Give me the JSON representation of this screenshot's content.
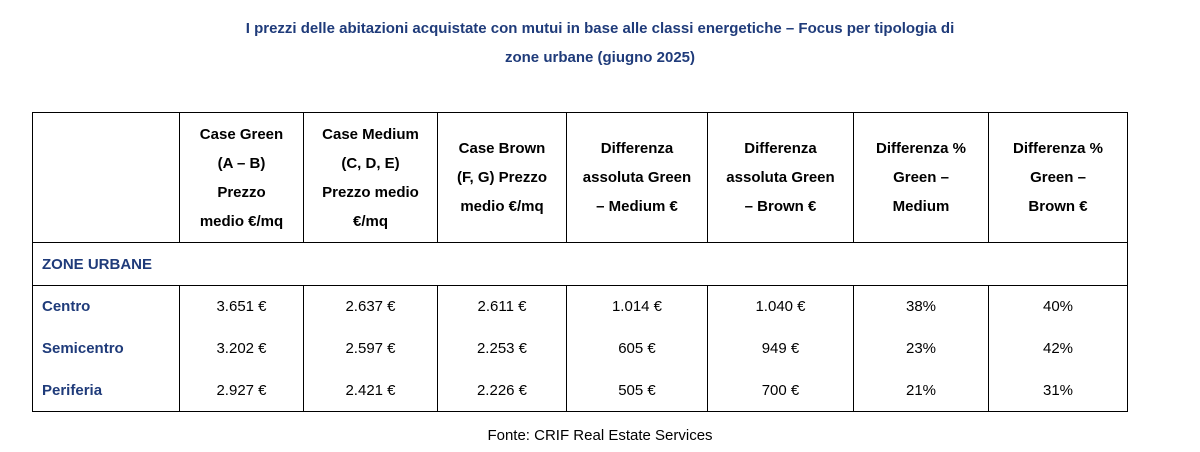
{
  "title": {
    "line1": "I prezzi delle abitazioni acquistate con mutui in base alle classi energetiche – Focus per tipologia di",
    "line2": "zone urbane (giugno 2025)"
  },
  "table": {
    "headers": [
      {
        "lines": []
      },
      {
        "lines": [
          "Case Green",
          "(A – B)",
          "Prezzo",
          "medio €/mq"
        ]
      },
      {
        "lines": [
          "Case Medium",
          "(C, D, E)",
          "Prezzo medio",
          "€/mq"
        ]
      },
      {
        "lines": [
          "Case Brown",
          "(F, G) Prezzo",
          "medio €/mq"
        ]
      },
      {
        "lines": [
          "Differenza",
          "assoluta Green",
          "– Medium €"
        ]
      },
      {
        "lines": [
          "Differenza",
          "assoluta Green",
          "– Brown €"
        ]
      },
      {
        "lines": [
          "Differenza %",
          "Green –",
          "Medium"
        ]
      },
      {
        "lines": [
          "Differenza %",
          "Green –",
          "Brown €"
        ]
      }
    ],
    "section_label": "ZONE URBANE",
    "rows": [
      {
        "label": "Centro",
        "values": [
          "3.651 €",
          "2.637 €",
          "2.611 €",
          "1.014 €",
          "1.040 €",
          "38%",
          "40%"
        ]
      },
      {
        "label": "Semicentro",
        "values": [
          "3.202 €",
          "2.597 €",
          "2.253 €",
          "605 €",
          "949 €",
          "23%",
          "42%"
        ]
      },
      {
        "label": "Periferia",
        "values": [
          "2.927 €",
          "2.421 €",
          "2.226 €",
          "505 €",
          "700 €",
          "21%",
          "31%"
        ]
      }
    ]
  },
  "source": "Fonte: CRIF Real Estate Services",
  "colors": {
    "accent": "#1f3b7a",
    "border": "#000000"
  }
}
